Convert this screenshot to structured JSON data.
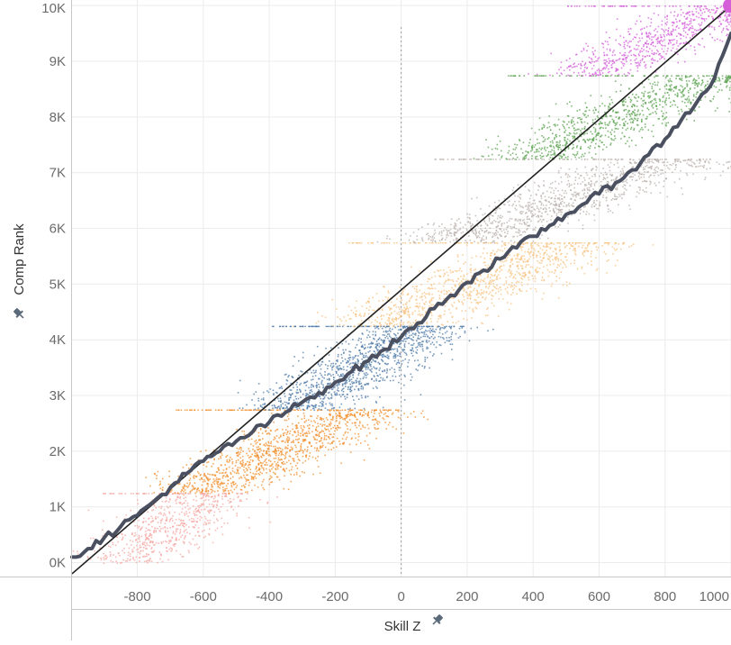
{
  "chart_data": {
    "type": "scatter",
    "xlabel": "Skill Z",
    "ylabel": "Comp Rank",
    "xlim": [
      -998,
      1000
    ],
    "ylim": [
      -250,
      10100
    ],
    "x_ticks": [
      {
        "value": -800,
        "label": "-800"
      },
      {
        "value": -600,
        "label": "-600"
      },
      {
        "value": -400,
        "label": "-400"
      },
      {
        "value": -200,
        "label": "-200"
      },
      {
        "value": 0,
        "label": "0"
      },
      {
        "value": 200,
        "label": "200"
      },
      {
        "value": 400,
        "label": "400"
      },
      {
        "value": 600,
        "label": "600"
      },
      {
        "value": 800,
        "label": "800"
      },
      {
        "value": 1000,
        "label": "1000"
      }
    ],
    "y_ticks": [
      {
        "value": 0,
        "label": "0K"
      },
      {
        "value": 1000,
        "label": "1K"
      },
      {
        "value": 2000,
        "label": "2K"
      },
      {
        "value": 3000,
        "label": "3K"
      },
      {
        "value": 4000,
        "label": "4K"
      },
      {
        "value": 5000,
        "label": "5K"
      },
      {
        "value": 6000,
        "label": "6K"
      },
      {
        "value": 7000,
        "label": "7K"
      },
      {
        "value": 8000,
        "label": "8K"
      },
      {
        "value": 9000,
        "label": "9K"
      },
      {
        "value": 10000,
        "label": "10K"
      }
    ],
    "grid": true,
    "zero_reference_line": true,
    "series": [
      {
        "band_rank": [
          0,
          1250
        ],
        "color": "#f4a6a0",
        "x_center": [
          -850,
          -580
        ],
        "x_spread": 150,
        "density": 0.55
      },
      {
        "band_rank": [
          1250,
          2750
        ],
        "color": "#f28e2b",
        "x_center": [
          -620,
          -140
        ],
        "x_spread": 170,
        "density": 1.0
      },
      {
        "band_rank": [
          2750,
          4250
        ],
        "color": "#4e79a7",
        "x_center": [
          -330,
          60
        ],
        "x_spread": 160,
        "density": 1.0
      },
      {
        "band_rank": [
          4250,
          5750
        ],
        "color": "#f7c27f",
        "x_center": [
          -80,
          520
        ],
        "x_spread": 200,
        "density": 0.95
      },
      {
        "band_rank": [
          5750,
          7250
        ],
        "color": "#bab0ac",
        "x_center": [
          160,
          800
        ],
        "x_spread": 190,
        "density": 0.95
      },
      {
        "band_rank": [
          7250,
          8750
        ],
        "color": "#59a14f",
        "x_center": [
          390,
          930
        ],
        "x_spread": 170,
        "density": 0.8
      },
      {
        "band_rank": [
          8750,
          10000
        ],
        "color": "#d45fd9",
        "x_center": [
          560,
          980
        ],
        "x_spread": 150,
        "density": 0.6
      }
    ],
    "reference_line": {
      "color": "#222222",
      "points": [
        [
          -998,
          -200
        ],
        [
          1000,
          10000
        ]
      ]
    },
    "trend_line": {
      "color": "#4a5060",
      "points": [
        [
          -998,
          100
        ],
        [
          -950,
          250
        ],
        [
          -900,
          450
        ],
        [
          -850,
          650
        ],
        [
          -800,
          850
        ],
        [
          -750,
          1100
        ],
        [
          -700,
          1350
        ],
        [
          -650,
          1600
        ],
        [
          -600,
          1820
        ],
        [
          -550,
          2000
        ],
        [
          -500,
          2180
        ],
        [
          -450,
          2350
        ],
        [
          -400,
          2520
        ],
        [
          -350,
          2700
        ],
        [
          -300,
          2880
        ],
        [
          -250,
          3050
        ],
        [
          -200,
          3240
        ],
        [
          -150,
          3430
        ],
        [
          -100,
          3620
        ],
        [
          -50,
          3830
        ],
        [
          0,
          4050
        ],
        [
          50,
          4300
        ],
        [
          100,
          4560
        ],
        [
          150,
          4800
        ],
        [
          200,
          5030
        ],
        [
          250,
          5250
        ],
        [
          300,
          5450
        ],
        [
          350,
          5650
        ],
        [
          400,
          5860
        ],
        [
          450,
          6050
        ],
        [
          500,
          6250
        ],
        [
          550,
          6430
        ],
        [
          600,
          6620
        ],
        [
          650,
          6820
        ],
        [
          700,
          7050
        ],
        [
          750,
          7320
        ],
        [
          800,
          7600
        ],
        [
          850,
          7950
        ],
        [
          900,
          8300
        ],
        [
          950,
          8700
        ],
        [
          1000,
          9500
        ]
      ]
    },
    "highlight_point": {
      "x": 1000,
      "y": 10000,
      "color": "#d45fd9"
    }
  }
}
